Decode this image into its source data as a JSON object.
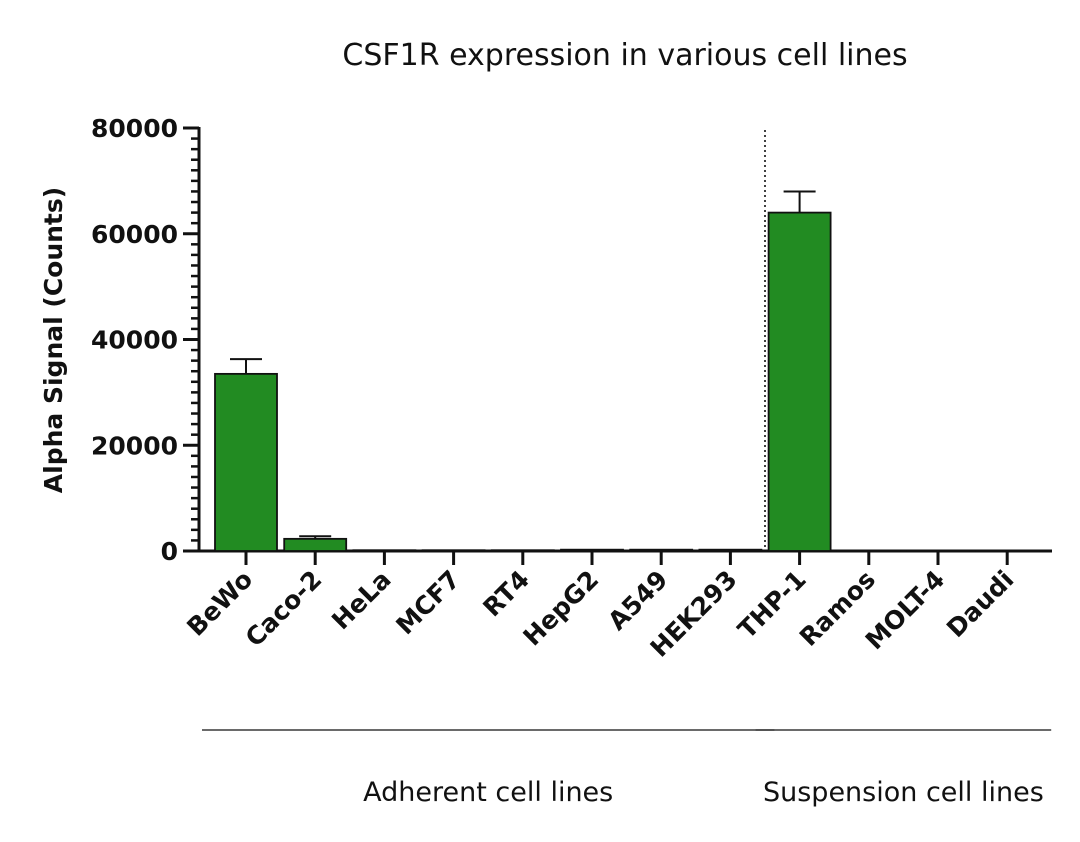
{
  "chart_data": {
    "type": "bar",
    "title": "CSF1R expression in various cell lines",
    "ylabel": "Alpha Signal (Counts)",
    "xlabel": "",
    "ylim": [
      0,
      80000
    ],
    "yticks": [
      "0",
      "20000",
      "40000",
      "60000",
      "80000"
    ],
    "grid": false,
    "bar_color": "#228b22",
    "categories": [
      "BeWo",
      "Caco-2",
      "HeLa",
      "MCF7",
      "RT4",
      "HepG2",
      "A549",
      "HEK293",
      "THP-1",
      "Ramos",
      "MOLT-4",
      "Daudi"
    ],
    "values": [
      33500,
      2300,
      150,
      150,
      150,
      250,
      250,
      250,
      64000,
      100,
      100,
      100
    ],
    "errors": [
      2800,
      500,
      0,
      0,
      0,
      0,
      0,
      0,
      4000,
      0,
      0,
      0
    ],
    "groups": [
      {
        "label": "Adherent cell lines",
        "from": 0,
        "to": 7
      },
      {
        "label": "Suspension cell lines",
        "from": 8,
        "to": 11
      }
    ]
  }
}
